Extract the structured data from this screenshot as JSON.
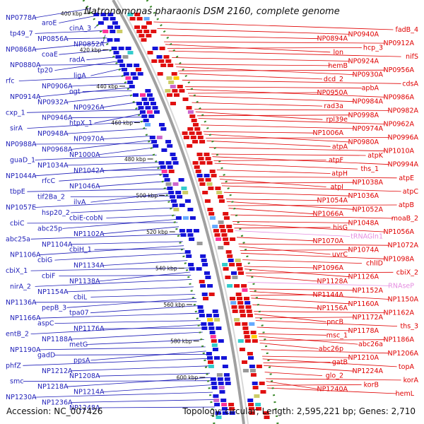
{
  "title": "Natronomonas pharaonis DSM 2160, complete genome",
  "footer": {
    "accession": "Accession: NC_007426",
    "summary": "Topology: circular; Length: 2,595,221 bp; Genes: 2,710"
  },
  "colors": {
    "reverse_strand_label": "#1d1db8",
    "forward_strand_label": "#e00000",
    "rna_label": "#e58de0",
    "backbone": "#a0a0a0",
    "gc_ring_dots": "#3a8a2a"
  },
  "scale_ticks": [
    "400 kbp",
    "420 kbp",
    "440 kbp",
    "460 kbp",
    "480 kbp",
    "500 kbp",
    "520 kbp",
    "540 kbp",
    "560 kbp",
    "580 kbp",
    "600 kbp"
  ],
  "left_labels": [
    "NP0778A",
    "aroE",
    "cinA_3",
    "tp49_7",
    "NP0856A",
    "NP0852A",
    "NP0868A",
    "coaE",
    "radA",
    "NP0880A",
    "tp20",
    "ligA",
    "rfc",
    "NP0906A",
    "ogt",
    "NP0914A",
    "NP0932A",
    "NP0926A",
    "cxp_1",
    "NP0946A",
    "htpX_1",
    "sirA",
    "NP0948A",
    "NP0970A",
    "NP0988A",
    "NP0968A",
    "NP1000A",
    "guaD_1",
    "NP1034A",
    "NP1042A",
    "NP1044A",
    "rfcC",
    "NP1046A",
    "tbpE",
    "tif2Ba_2",
    "ilvA",
    "NP1057E",
    "hsp20_2",
    "cbiE-cobN",
    "cbiC",
    "abc25p",
    "NP1102A",
    "abc25a",
    "NP1104A",
    "cbiH_1",
    "NP1106A",
    "cbiG",
    "NP1134A",
    "cbiX_1",
    "cbiF",
    "NP1138A",
    "nirA_2",
    "NP1154A",
    "cbiL",
    "NP1136A",
    "pepB_3",
    "tpa07",
    "NP1166A",
    "aspC",
    "NP1176A",
    "entB_2",
    "NP1188A",
    "metG",
    "NP1190A",
    "gadD",
    "ppsA",
    "phfZ",
    "NP1212A",
    "NP1208A",
    "smc",
    "NP1218A",
    "NP1214A",
    "NP1230A",
    "NP1236A",
    "NP1248A"
  ],
  "right_labels": [
    "fadB_4",
    "NP0940A",
    "NP0894A",
    "NP0912A",
    "hcp_3",
    "lon",
    "nifS",
    "NP0924A",
    "hemB",
    "NP0956A",
    "NP0930A",
    "dcd_2",
    "cdsA",
    "apbA",
    "NP0950A",
    "NP0986A",
    "NP0984A",
    "rad3a",
    "NP0982A",
    "NP0998A",
    "rpl39e",
    "NP0962A",
    "NP0974A",
    "NP1006A",
    "NP0996A",
    "NP0980A",
    "atpA",
    "NP1010A",
    "atpK",
    "atpF",
    "NP0994A",
    "ths_1",
    "atpH",
    "atpE",
    "NP1038A",
    "atpI",
    "atpC",
    "NP1036A",
    "NP1054A",
    "atpB",
    "NP1052A",
    "NP1066A",
    "moaB_2",
    "NP1048A",
    "hisG",
    "NP1056A",
    "tRNAGln1",
    "NP1070A",
    "NP1072A",
    "NP1074A",
    "uvrC",
    "NP1098A",
    "chlID",
    "NP1096A",
    "cbiX_2",
    "NP1126A",
    "NP1128A",
    "RNAseP",
    "NP1152A",
    "NP1144A",
    "NP1150A",
    "NP1160A",
    "NP1156A",
    "NP1162A",
    "NP1172A",
    "pncB",
    "ths_3",
    "NP1178A",
    "msc_1",
    "NP1186A",
    "abc26a",
    "abc26p",
    "NP1206A",
    "NP1210A",
    "gatB",
    "topA",
    "NP1224A",
    "glo_2",
    "korA",
    "korB",
    "NP1240A",
    "hemL"
  ]
}
